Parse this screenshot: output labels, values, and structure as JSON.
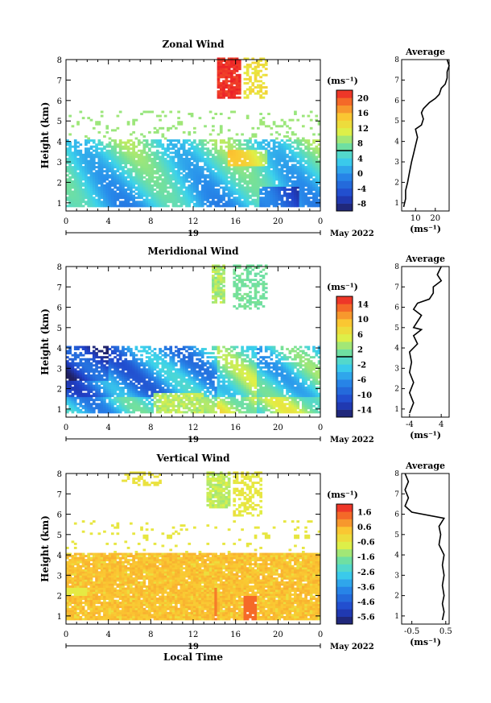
{
  "chart_data": [
    {
      "type": "heatmap",
      "title": "Zonal Wind",
      "ylabel": "Height (km)",
      "xlabel": "",
      "x_ticks": [
        "0",
        "4",
        "8",
        "12",
        "16",
        "20",
        "0"
      ],
      "x_range_hours": [
        0,
        24
      ],
      "y_ticks": [
        "1",
        "2",
        "3",
        "4",
        "5",
        "6",
        "7",
        "8"
      ],
      "ylim": [
        0.6,
        8
      ],
      "date_day": "19",
      "date_month": "May 2022",
      "unit": "(ms⁻¹)",
      "colorbar_ticks": [
        "-8",
        "-4",
        "0",
        "4",
        "8",
        "12",
        "16",
        "20"
      ],
      "colorbar_range": [
        -10,
        22
      ],
      "zero_contour": true,
      "profile": {
        "title": "Average",
        "x_ticks": [
          "10",
          "20"
        ],
        "xlim": [
          3,
          27
        ],
        "xlabel": "(ms⁻¹)",
        "points": [
          [
            4,
            0.8
          ],
          [
            5,
            1.2
          ],
          [
            5,
            1.6
          ],
          [
            6,
            2.0
          ],
          [
            7,
            2.5
          ],
          [
            8,
            3.0
          ],
          [
            9,
            3.4
          ],
          [
            10,
            3.8
          ],
          [
            11,
            4.2
          ],
          [
            10,
            4.6
          ],
          [
            13,
            4.8
          ],
          [
            14,
            5.1
          ],
          [
            13,
            5.4
          ],
          [
            14,
            5.6
          ],
          [
            17,
            5.9
          ],
          [
            20,
            6.1
          ],
          [
            22,
            6.3
          ],
          [
            23,
            6.6
          ],
          [
            25,
            6.8
          ],
          [
            26,
            7.1
          ],
          [
            26,
            7.4
          ],
          [
            27,
            7.7
          ],
          [
            26,
            8.0
          ]
        ]
      }
    },
    {
      "type": "heatmap",
      "title": "Meridional Wind",
      "ylabel": "Height (km)",
      "xlabel": "",
      "x_ticks": [
        "0",
        "4",
        "8",
        "12",
        "16",
        "20",
        "0"
      ],
      "x_range_hours": [
        0,
        24
      ],
      "y_ticks": [
        "1",
        "2",
        "3",
        "4",
        "5",
        "6",
        "7",
        "8"
      ],
      "ylim": [
        0.6,
        8
      ],
      "date_day": "19",
      "date_month": "May 2022",
      "unit": "(ms⁻¹)",
      "colorbar_ticks": [
        "-14",
        "-10",
        "-6",
        "-2",
        "2",
        "6",
        "10",
        "14"
      ],
      "colorbar_range": [
        -16,
        16
      ],
      "zero_contour": true,
      "profile": {
        "title": "Average",
        "x_ticks": [
          "-4",
          "4"
        ],
        "xlim": [
          -6,
          6
        ],
        "xlabel": "(ms⁻¹)",
        "points": [
          [
            -4,
            0.8
          ],
          [
            -3,
            1.3
          ],
          [
            -4,
            1.8
          ],
          [
            -3,
            2.3
          ],
          [
            -4,
            2.8
          ],
          [
            -3.5,
            3.3
          ],
          [
            -4,
            3.8
          ],
          [
            -2,
            4.2
          ],
          [
            -3,
            4.6
          ],
          [
            -1,
            4.9
          ],
          [
            -3,
            5.0
          ],
          [
            -2,
            5.3
          ],
          [
            -1,
            5.6
          ],
          [
            -3,
            5.9
          ],
          [
            -2,
            6.2
          ],
          [
            1,
            6.4
          ],
          [
            2,
            6.7
          ],
          [
            2,
            7.0
          ],
          [
            4,
            7.3
          ],
          [
            3,
            7.6
          ],
          [
            4,
            8.0
          ]
        ]
      }
    },
    {
      "type": "heatmap",
      "title": "Vertical Wind",
      "ylabel": "Height (km)",
      "xlabel": "Local Time",
      "x_ticks": [
        "0",
        "4",
        "8",
        "12",
        "16",
        "20",
        "0"
      ],
      "x_range_hours": [
        0,
        24
      ],
      "y_ticks": [
        "1",
        "2",
        "3",
        "4",
        "5",
        "6",
        "7",
        "8"
      ],
      "ylim": [
        0.6,
        8
      ],
      "date_day": "19",
      "date_month": "May 2022",
      "unit": "(ms⁻¹)",
      "colorbar_ticks": [
        "-5.6",
        "-4.6",
        "-3.6",
        "-2.6",
        "-1.6",
        "-0.6",
        "0.6",
        "1.6"
      ],
      "colorbar_range": [
        -6.2,
        2.2
      ],
      "zero_contour": false,
      "profile": {
        "title": "Average",
        "x_ticks": [
          "-0.5",
          "0.5"
        ],
        "xlim": [
          -0.8,
          0.6
        ],
        "xlabel": "(ms⁻¹)",
        "points": [
          [
            0.4,
            0.8
          ],
          [
            0.45,
            1.2
          ],
          [
            0.4,
            1.6
          ],
          [
            0.45,
            2.0
          ],
          [
            0.4,
            2.5
          ],
          [
            0.45,
            3.0
          ],
          [
            0.4,
            3.5
          ],
          [
            0.45,
            4.0
          ],
          [
            0.3,
            4.5
          ],
          [
            0.35,
            5.0
          ],
          [
            0.3,
            5.4
          ],
          [
            0.45,
            5.8
          ],
          [
            -0.5,
            6.1
          ],
          [
            -0.7,
            6.4
          ],
          [
            -0.6,
            6.8
          ],
          [
            -0.7,
            7.2
          ],
          [
            -0.6,
            7.6
          ],
          [
            -0.7,
            8.0
          ]
        ]
      }
    }
  ]
}
